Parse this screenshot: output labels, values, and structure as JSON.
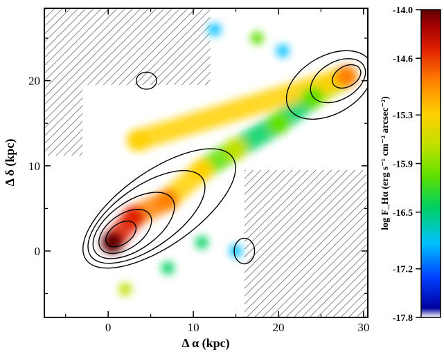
{
  "chart_data": [
    {
      "type": "heatmap",
      "subtype": "emission map with contour overlay",
      "xlabel": "Δ α (kpc)",
      "ylabel": "Δ δ (kpc)",
      "xlim": [
        -7.5,
        30.5
      ],
      "ylim": [
        -7.8,
        28.5
      ],
      "xticks": [
        0,
        10,
        20,
        30
      ],
      "yticks": [
        0,
        10,
        20
      ],
      "grid": false,
      "masked_regions": [
        {
          "x": [
            -7.5,
            12
          ],
          "y": [
            19.5,
            28.5
          ]
        },
        {
          "x": [
            -7.5,
            -3
          ],
          "y": [
            11.2,
            19.5
          ]
        },
        {
          "x": [
            16,
            30.5
          ],
          "y": [
            -7.8,
            9.5
          ]
        }
      ],
      "emission_clumps": [
        {
          "x": 0.5,
          "y": 1.0,
          "level": -14.1
        },
        {
          "x": 3.0,
          "y": 4.0,
          "level": -14.6
        },
        {
          "x": 7.0,
          "y": 6.0,
          "level": -15.0
        },
        {
          "x": 11.0,
          "y": 9.5,
          "level": -15.3
        },
        {
          "x": 15.0,
          "y": 12.0,
          "level": -15.9
        },
        {
          "x": 20.0,
          "y": 15.0,
          "level": -16.2
        },
        {
          "x": 24.0,
          "y": 18.0,
          "level": -16.0
        },
        {
          "x": 28.0,
          "y": 20.5,
          "level": -14.9
        },
        {
          "x": 3.5,
          "y": 13.0,
          "level": -15.5
        },
        {
          "x": 7.0,
          "y": -2.0,
          "level": -16.3
        },
        {
          "x": 11.0,
          "y": 1.0,
          "level": -16.4
        },
        {
          "x": 2.0,
          "y": -4.5,
          "level": -15.6
        },
        {
          "x": 15.0,
          "y": 0.0,
          "level": -16.6
        },
        {
          "x": 17.5,
          "y": 25.0,
          "level": -16.1
        },
        {
          "x": 20.5,
          "y": 23.5,
          "level": -16.7
        },
        {
          "x": 12.5,
          "y": 26.0,
          "level": -16.8
        }
      ],
      "contours": [
        {
          "x": 1.5,
          "y": 2.0,
          "rx": 2.0,
          "ry": 1.2,
          "angle": 35
        },
        {
          "x": 2.0,
          "y": 2.3,
          "rx": 3.5,
          "ry": 2.0,
          "angle": 35
        },
        {
          "x": 3.0,
          "y": 3.0,
          "rx": 5.5,
          "ry": 2.8,
          "angle": 35
        },
        {
          "x": 4.5,
          "y": 4.0,
          "rx": 8.0,
          "ry": 3.6,
          "angle": 35
        },
        {
          "x": 6.0,
          "y": 5.0,
          "rx": 10.5,
          "ry": 4.4,
          "angle": 35
        },
        {
          "x": 28.0,
          "y": 20.5,
          "rx": 1.8,
          "ry": 1.2,
          "angle": 30
        },
        {
          "x": 27.0,
          "y": 20.0,
          "rx": 3.5,
          "ry": 2.2,
          "angle": 30
        },
        {
          "x": 26.0,
          "y": 19.5,
          "rx": 5.5,
          "ry": 3.4,
          "angle": 30
        },
        {
          "x": 16.0,
          "y": 0.0,
          "rx": 1.2,
          "ry": 1.5,
          "angle": 0
        },
        {
          "x": 4.5,
          "y": 20.0,
          "rx": 1.2,
          "ry": 1.0,
          "angle": 0
        }
      ]
    },
    {
      "type": "colorbar",
      "ylabel": "log F_Hα (erg s⁻¹ cm⁻² arcsec⁻²)",
      "ylim": [
        -17.8,
        -14.0
      ],
      "ticks": [
        "-14.0",
        "-14.6",
        "-15.3",
        "-15.9",
        "-16.5",
        "-17.2",
        "-17.8"
      ],
      "tick_values": [
        -14.0,
        -14.6,
        -15.3,
        -15.9,
        -16.5,
        -17.2,
        -17.8
      ],
      "colormap": [
        "#ffffff",
        "#0000a0",
        "#0040ff",
        "#00c0ff",
        "#00d060",
        "#60e000",
        "#c0e000",
        "#ffd000",
        "#ff8000",
        "#e02000",
        "#a00000",
        "#600000"
      ]
    }
  ]
}
